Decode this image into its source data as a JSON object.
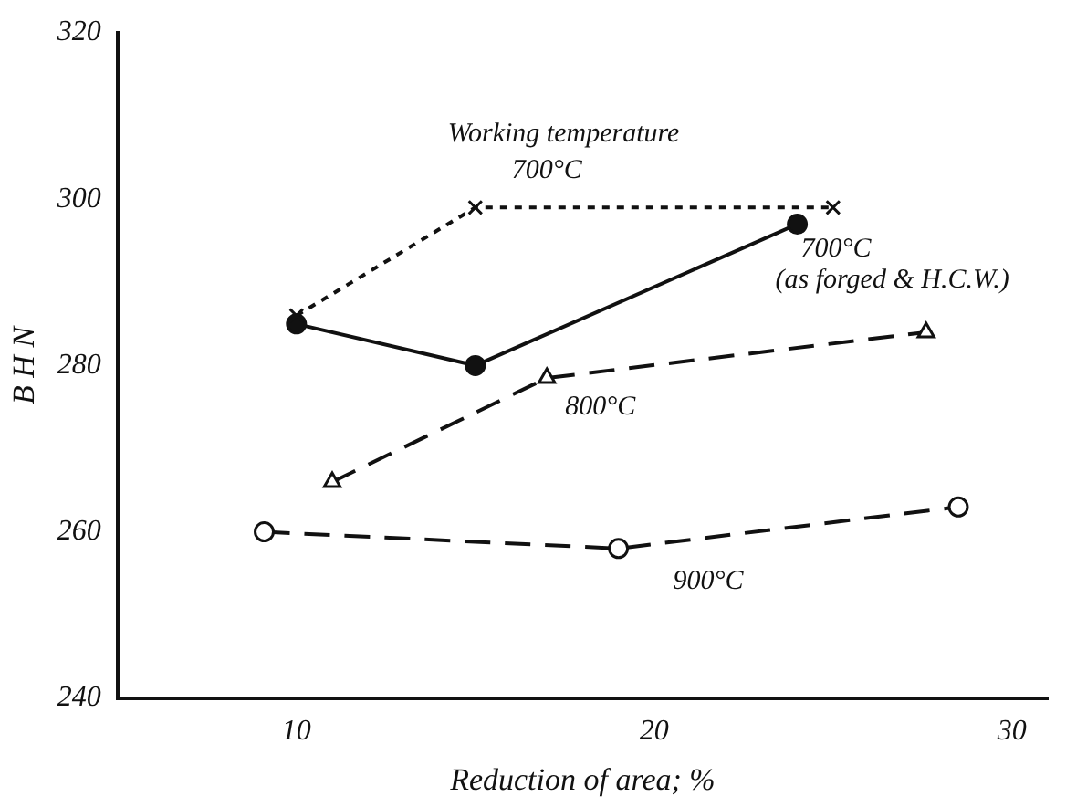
{
  "chart_data": {
    "type": "line",
    "xlabel": "Reduction of area; %",
    "ylabel": "B H N",
    "annotations": [
      "Working temperature"
    ],
    "xlim": [
      5,
      31
    ],
    "xticks": [
      10,
      20,
      30
    ],
    "ylim": [
      240,
      320
    ],
    "yticks": [
      240,
      260,
      280,
      300,
      320
    ],
    "grid": false,
    "legend": false,
    "series": [
      {
        "name": "700°C",
        "color": "#111111",
        "x": [
          10,
          15,
          25
        ],
        "values": [
          286,
          299,
          299
        ],
        "marker": "cross",
        "line_style": "dotted"
      },
      {
        "name": "700°C\n(as forged & H.C.W.)",
        "color": "#111111",
        "x": [
          10,
          15,
          24
        ],
        "values": [
          285,
          280,
          297
        ],
        "marker": "circle",
        "line_style": "solid"
      },
      {
        "name": "800°C",
        "color": "#111111",
        "x": [
          11,
          17,
          27.6
        ],
        "values": [
          266,
          278.5,
          284
        ],
        "marker": "triangle",
        "line_style": "dashed"
      },
      {
        "name": "900°C",
        "color": "#111111",
        "x": [
          9.1,
          19,
          28.5
        ],
        "values": [
          260,
          258,
          263
        ],
        "marker": "circle",
        "line_style": "dashed"
      }
    ]
  }
}
